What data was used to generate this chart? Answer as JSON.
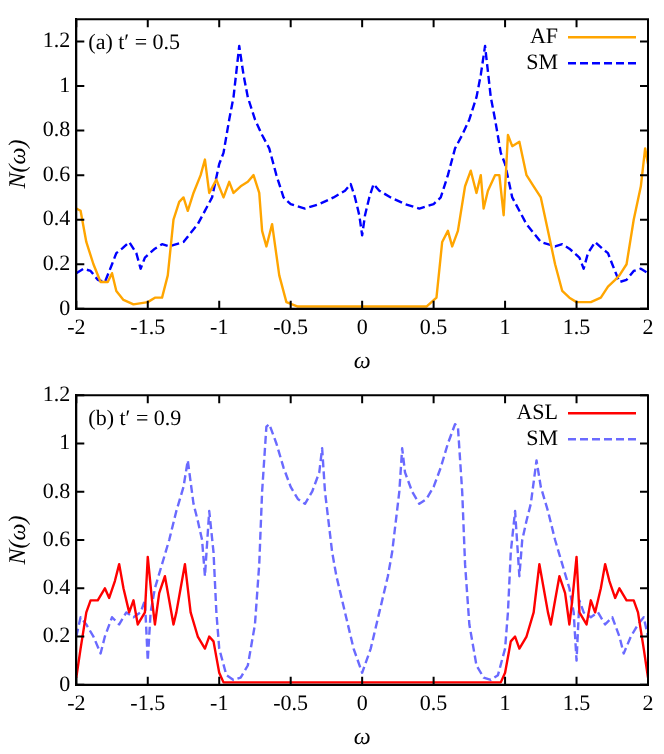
{
  "chart_data": [
    {
      "type": "line",
      "annotations": [
        "(a) t′ = 0.5"
      ],
      "xlabel": "ω",
      "ylabel": "N(ω)",
      "xlim": [
        -2,
        2
      ],
      "xticks": [
        -2,
        -1.5,
        -1,
        -0.5,
        0,
        0.5,
        1,
        1.5,
        2
      ],
      "ylim": [
        0,
        1.3
      ],
      "yticks": [
        0,
        0.2,
        0.4,
        0.6,
        0.8,
        1,
        1.2
      ],
      "legend": "top right",
      "grid": false,
      "marker": "none",
      "series": [
        {
          "name": "AF",
          "color": "#ffa500",
          "line_style": "solid",
          "x": [
            -2,
            -1.97,
            -1.93,
            -1.88,
            -1.83,
            -1.78,
            -1.75,
            -1.72,
            -1.67,
            -1.6,
            -1.5,
            -1.45,
            -1.4,
            -1.36,
            -1.32,
            -1.28,
            -1.25,
            -1.22,
            -1.18,
            -1.13,
            -1.1,
            -1.07,
            -1.02,
            -0.97,
            -0.93,
            -0.9,
            -0.85,
            -0.8,
            -0.76,
            -0.72,
            -0.7,
            -0.67,
            -0.63,
            -0.58,
            -0.53,
            -0.45,
            0,
            0.45,
            0.52,
            0.56,
            0.6,
            0.63,
            0.67,
            0.72,
            0.76,
            0.8,
            0.83,
            0.85,
            0.88,
            0.93,
            0.96,
            0.99,
            1.02,
            1.05,
            1.1,
            1.15,
            1.2,
            1.25,
            1.3,
            1.35,
            1.4,
            1.45,
            1.5,
            1.6,
            1.67,
            1.72,
            1.77,
            1.8,
            1.85,
            1.9,
            1.95,
            1.98,
            2
          ],
          "values": [
            0.45,
            0.44,
            0.3,
            0.2,
            0.12,
            0.12,
            0.16,
            0.08,
            0.04,
            0.02,
            0.03,
            0.05,
            0.05,
            0.15,
            0.4,
            0.48,
            0.5,
            0.44,
            0.52,
            0.6,
            0.67,
            0.52,
            0.58,
            0.5,
            0.57,
            0.52,
            0.55,
            0.57,
            0.6,
            0.52,
            0.35,
            0.28,
            0.38,
            0.15,
            0.03,
            0.01,
            0.01,
            0.01,
            0.05,
            0.3,
            0.35,
            0.28,
            0.35,
            0.55,
            0.62,
            0.52,
            0.6,
            0.45,
            0.53,
            0.6,
            0.6,
            0.42,
            0.78,
            0.73,
            0.75,
            0.6,
            0.55,
            0.5,
            0.35,
            0.2,
            0.08,
            0.05,
            0.03,
            0.03,
            0.05,
            0.1,
            0.13,
            0.15,
            0.2,
            0.4,
            0.55,
            0.72,
            0.65
          ]
        },
        {
          "name": "SM",
          "color": "#0000ff",
          "line_style": "dashed",
          "x": [
            -2,
            -1.95,
            -1.9,
            -1.85,
            -1.8,
            -1.75,
            -1.72,
            -1.68,
            -1.63,
            -1.58,
            -1.55,
            -1.52,
            -1.45,
            -1.4,
            -1.35,
            -1.25,
            -1.15,
            -1.05,
            -1,
            -0.97,
            -0.93,
            -0.9,
            -0.86,
            -0.83,
            -0.8,
            -0.75,
            -0.7,
            -0.65,
            -0.6,
            -0.55,
            -0.5,
            -0.4,
            -0.3,
            -0.2,
            -0.12,
            -0.08,
            -0.05,
            -0.02,
            0,
            0.02,
            0.05,
            0.08,
            0.12,
            0.2,
            0.3,
            0.4,
            0.5,
            0.55,
            0.6,
            0.65,
            0.7,
            0.75,
            0.8,
            0.83,
            0.86,
            0.9,
            0.93,
            0.97,
            1,
            1.05,
            1.15,
            1.25,
            1.35,
            1.4,
            1.45,
            1.52,
            1.55,
            1.58,
            1.63,
            1.68,
            1.72,
            1.75,
            1.8,
            1.85,
            1.9,
            1.95,
            2
          ],
          "values": [
            0.16,
            0.18,
            0.17,
            0.13,
            0.12,
            0.2,
            0.25,
            0.27,
            0.3,
            0.25,
            0.18,
            0.23,
            0.27,
            0.29,
            0.28,
            0.3,
            0.38,
            0.5,
            0.65,
            0.7,
            0.85,
            0.95,
            1.18,
            1.05,
            0.95,
            0.85,
            0.78,
            0.72,
            0.6,
            0.5,
            0.47,
            0.45,
            0.47,
            0.5,
            0.53,
            0.56,
            0.5,
            0.42,
            0.33,
            0.42,
            0.5,
            0.56,
            0.53,
            0.5,
            0.47,
            0.45,
            0.47,
            0.5,
            0.6,
            0.72,
            0.78,
            0.85,
            0.95,
            1.05,
            1.18,
            0.95,
            0.85,
            0.7,
            0.65,
            0.5,
            0.38,
            0.3,
            0.28,
            0.29,
            0.27,
            0.23,
            0.18,
            0.25,
            0.3,
            0.27,
            0.25,
            0.2,
            0.12,
            0.13,
            0.17,
            0.18,
            0.16
          ]
        }
      ]
    },
    {
      "type": "line",
      "annotations": [
        "(b) t′ = 0.9"
      ],
      "xlabel": "ω",
      "ylabel": "N(ω)",
      "xlim": [
        -2,
        2
      ],
      "xticks": [
        -2,
        -1.5,
        -1,
        -0.5,
        0,
        0.5,
        1,
        1.5,
        2
      ],
      "ylim": [
        0,
        1.2
      ],
      "yticks": [
        0,
        0.2,
        0.4,
        0.6,
        0.8,
        1,
        1.2
      ],
      "legend": "top right",
      "grid": false,
      "marker": "none",
      "series": [
        {
          "name": "ASL",
          "color": "#ff0000",
          "line_style": "solid",
          "x": [
            -2,
            -1.97,
            -1.93,
            -1.9,
            -1.85,
            -1.8,
            -1.77,
            -1.73,
            -1.7,
            -1.67,
            -1.63,
            -1.6,
            -1.57,
            -1.52,
            -1.5,
            -1.47,
            -1.45,
            -1.42,
            -1.38,
            -1.35,
            -1.32,
            -1.3,
            -1.27,
            -1.24,
            -1.2,
            -1.15,
            -1.1,
            -1.07,
            -1.04,
            -1,
            -0.97,
            -0.8,
            0,
            0.8,
            0.97,
            1,
            1.04,
            1.07,
            1.1,
            1.15,
            1.2,
            1.24,
            1.27,
            1.3,
            1.32,
            1.35,
            1.38,
            1.42,
            1.45,
            1.47,
            1.5,
            1.52,
            1.57,
            1.6,
            1.63,
            1.67,
            1.7,
            1.73,
            1.77,
            1.8,
            1.85,
            1.9,
            1.93,
            1.97,
            2
          ],
          "values": [
            0.03,
            0.15,
            0.3,
            0.35,
            0.35,
            0.4,
            0.36,
            0.43,
            0.5,
            0.4,
            0.3,
            0.35,
            0.25,
            0.3,
            0.53,
            0.35,
            0.25,
            0.38,
            0.45,
            0.35,
            0.25,
            0.3,
            0.4,
            0.5,
            0.3,
            0.2,
            0.15,
            0.2,
            0.18,
            0.05,
            0.01,
            0.01,
            0.01,
            0.01,
            0.01,
            0.05,
            0.18,
            0.2,
            0.15,
            0.2,
            0.3,
            0.5,
            0.4,
            0.3,
            0.25,
            0.35,
            0.45,
            0.38,
            0.25,
            0.35,
            0.53,
            0.3,
            0.25,
            0.35,
            0.3,
            0.4,
            0.5,
            0.43,
            0.36,
            0.4,
            0.35,
            0.35,
            0.3,
            0.15,
            0.03
          ]
        },
        {
          "name": "SM",
          "color": "#6a6aff",
          "line_style": "dashed",
          "x": [
            -2,
            -1.97,
            -1.93,
            -1.88,
            -1.83,
            -1.8,
            -1.75,
            -1.7,
            -1.65,
            -1.6,
            -1.55,
            -1.52,
            -1.5,
            -1.48,
            -1.45,
            -1.4,
            -1.35,
            -1.3,
            -1.25,
            -1.22,
            -1.18,
            -1.15,
            -1.12,
            -1.1,
            -1.07,
            -1.04,
            -1.02,
            -1,
            -0.95,
            -0.9,
            -0.85,
            -0.8,
            -0.75,
            -0.72,
            -0.7,
            -0.67,
            -0.65,
            -0.6,
            -0.55,
            -0.5,
            -0.45,
            -0.4,
            -0.35,
            -0.3,
            -0.28,
            -0.26,
            -0.23,
            -0.21,
            -0.18,
            -0.12,
            -0.06,
            0,
            0.06,
            0.12,
            0.18,
            0.21,
            0.23,
            0.26,
            0.28,
            0.3,
            0.35,
            0.4,
            0.45,
            0.5,
            0.55,
            0.6,
            0.65,
            0.67,
            0.7,
            0.72,
            0.75,
            0.8,
            0.85,
            0.9,
            0.95,
            1,
            1.02,
            1.04,
            1.07,
            1.1,
            1.12,
            1.15,
            1.18,
            1.22,
            1.25,
            1.3,
            1.35,
            1.4,
            1.45,
            1.48,
            1.5,
            1.52,
            1.55,
            1.6,
            1.65,
            1.7,
            1.75,
            1.8,
            1.83,
            1.88,
            1.93,
            1.97,
            2
          ],
          "values": [
            0.2,
            0.28,
            0.25,
            0.2,
            0.13,
            0.2,
            0.28,
            0.25,
            0.3,
            0.28,
            0.3,
            0.35,
            0.1,
            0.3,
            0.4,
            0.5,
            0.6,
            0.72,
            0.82,
            0.93,
            0.75,
            0.68,
            0.6,
            0.45,
            0.72,
            0.55,
            0.3,
            0.15,
            0.04,
            0.02,
            0.03,
            0.08,
            0.25,
            0.5,
            0.8,
            1.07,
            1.08,
            1,
            0.9,
            0.82,
            0.77,
            0.75,
            0.8,
            0.88,
            0.98,
            0.8,
            0.65,
            0.55,
            0.45,
            0.3,
            0.15,
            0.05,
            0.15,
            0.3,
            0.45,
            0.55,
            0.65,
            0.8,
            0.98,
            0.88,
            0.8,
            0.75,
            0.77,
            0.82,
            0.9,
            1,
            1.08,
            1.07,
            0.8,
            0.5,
            0.25,
            0.08,
            0.03,
            0.02,
            0.04,
            0.15,
            0.3,
            0.55,
            0.72,
            0.45,
            0.6,
            0.68,
            0.75,
            0.93,
            0.82,
            0.72,
            0.6,
            0.5,
            0.4,
            0.3,
            0.1,
            0.35,
            0.3,
            0.28,
            0.3,
            0.25,
            0.28,
            0.2,
            0.13,
            0.2,
            0.25,
            0.28,
            0.2
          ]
        }
      ]
    }
  ]
}
